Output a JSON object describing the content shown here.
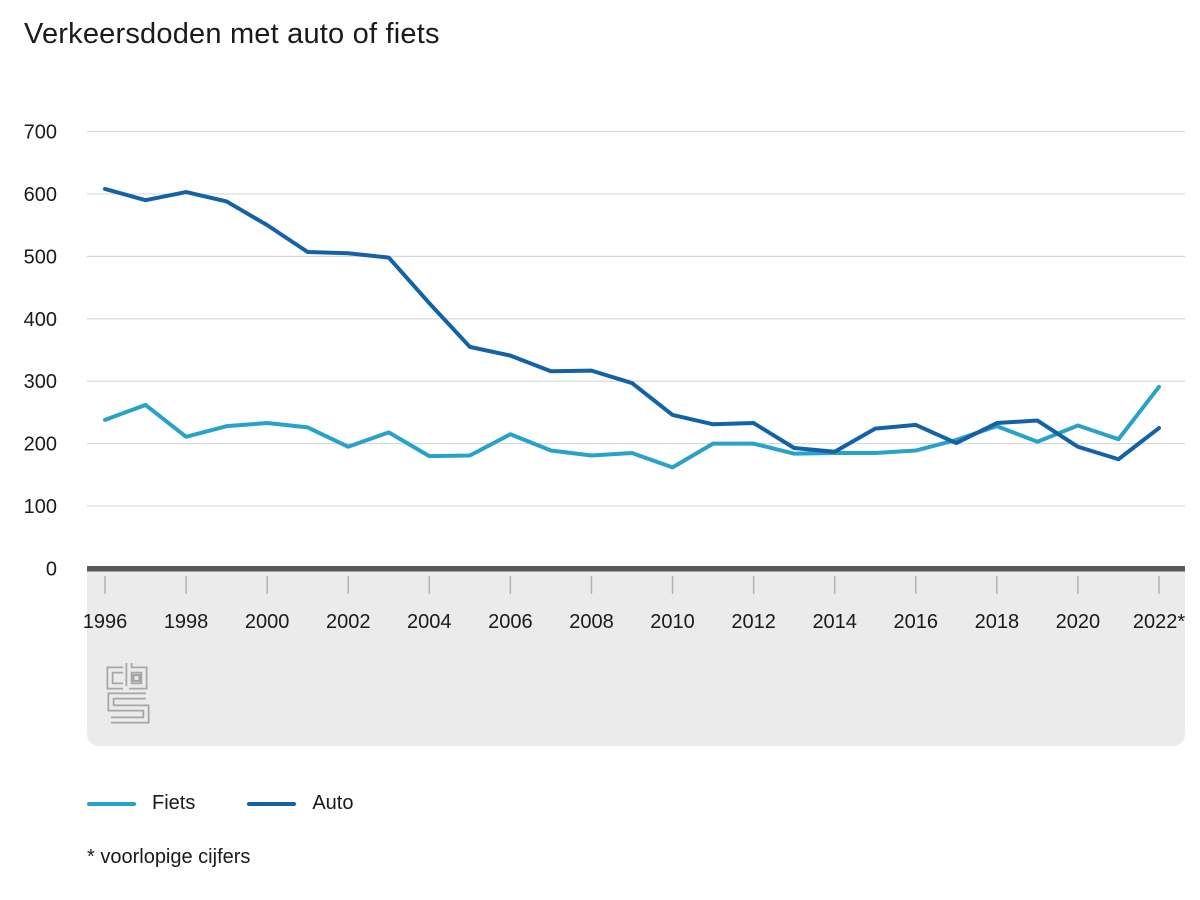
{
  "footnote": "* voorlopige cijfers",
  "logo_icon": "cbs-logo",
  "chart_data": {
    "type": "line",
    "title": "Verkeersdoden met auto of fiets",
    "x": [
      1996,
      1997,
      1998,
      1999,
      2000,
      2001,
      2002,
      2003,
      2004,
      2005,
      2006,
      2007,
      2008,
      2009,
      2010,
      2011,
      2012,
      2013,
      2014,
      2015,
      2016,
      2017,
      2018,
      2019,
      2020,
      2021,
      2022
    ],
    "series": [
      {
        "name": "Fiets",
        "color": "#28a2c9",
        "values": [
          238,
          262,
          211,
          228,
          233,
          226,
          195,
          218,
          180,
          181,
          215,
          189,
          181,
          185,
          162,
          200,
          200,
          184,
          185,
          185,
          189,
          206,
          228,
          203,
          229,
          207,
          291
        ]
      },
      {
        "name": "Auto",
        "color": "#1362a8",
        "values": [
          608,
          590,
          603,
          588,
          550,
          507,
          505,
          498,
          425,
          355,
          341,
          316,
          317,
          297,
          246,
          231,
          233,
          193,
          187,
          224,
          230,
          201,
          233,
          237,
          195,
          175,
          225
        ]
      }
    ],
    "xlabel": "",
    "ylabel": "",
    "ylim": [
      0,
      700
    ],
    "yticks": [
      0,
      100,
      200,
      300,
      400,
      500,
      600,
      700
    ],
    "x_ticks": [
      1996,
      1998,
      2000,
      2002,
      2004,
      2006,
      2008,
      2010,
      2012,
      2014,
      2016,
      2018,
      2020,
      2022
    ],
    "x_tick_labels": [
      "1996",
      "1998",
      "2000",
      "2002",
      "2004",
      "2006",
      "2008",
      "2010",
      "2012",
      "2014",
      "2016",
      "2018",
      "2020",
      "2022*"
    ],
    "grid": true,
    "legend_position": "bottom",
    "colors": {
      "grid": "#d9d9d9",
      "axis": "#58595b",
      "tick": "#b3b3b3",
      "area_bg": "#ebebeb",
      "text": "#1a1a1a"
    }
  }
}
